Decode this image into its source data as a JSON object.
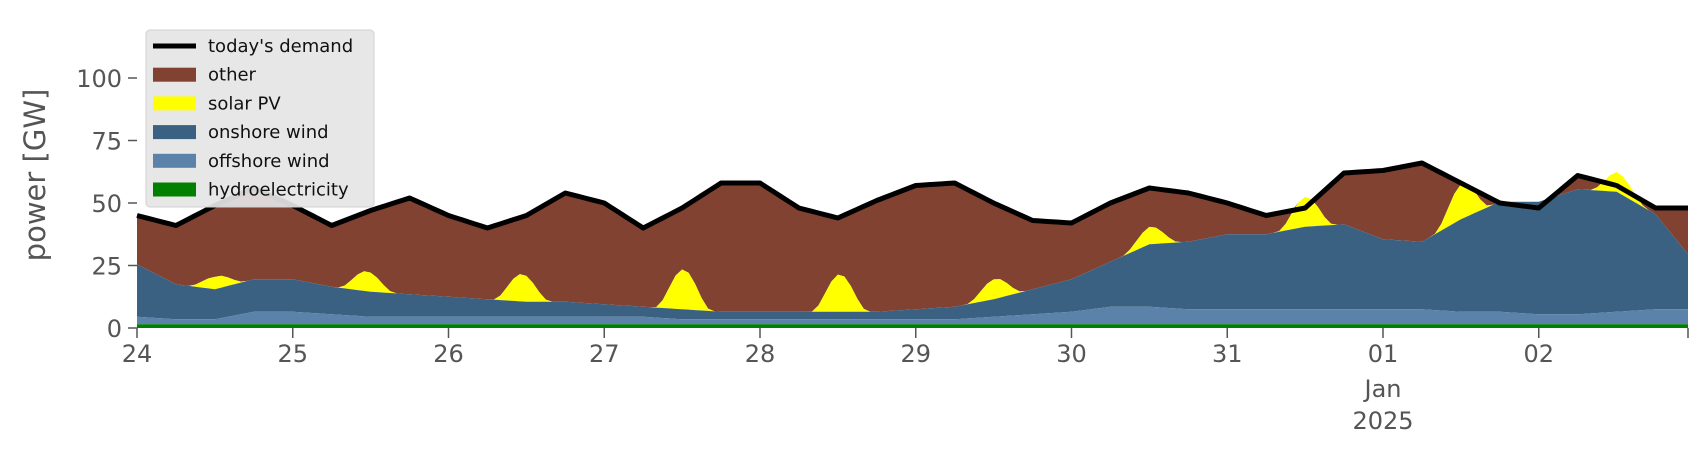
{
  "chart_data": {
    "type": "area",
    "ylabel": "power [GW]",
    "ylim": [
      0,
      120
    ],
    "yticks": [
      0,
      25,
      50,
      75,
      100
    ],
    "xlim": [
      0,
      239
    ],
    "xticks": [
      {
        "x": 0,
        "label": "24"
      },
      {
        "x": 24,
        "label": "25"
      },
      {
        "x": 48,
        "label": "26"
      },
      {
        "x": 72,
        "label": "27"
      },
      {
        "x": 96,
        "label": "28"
      },
      {
        "x": 120,
        "label": "29"
      },
      {
        "x": 144,
        "label": "30"
      },
      {
        "x": 168,
        "label": "31"
      },
      {
        "x": 192,
        "label": "01",
        "sub": [
          "Jan",
          "2025"
        ]
      },
      {
        "x": 216,
        "label": "02"
      }
    ],
    "grid": false,
    "legend_position": "top-left",
    "colors": {
      "demand": "#000000",
      "other": "#824232",
      "solar": "#ffff00",
      "onshore": "#3b6182",
      "offshore": "#5b82a8",
      "hydro": "#007f00"
    },
    "series": [
      {
        "key": "demand",
        "name": "today's demand",
        "kind": "line"
      },
      {
        "key": "other",
        "name": "other",
        "kind": "area"
      },
      {
        "key": "solar",
        "name": "solar PV",
        "kind": "area"
      },
      {
        "key": "onshore",
        "name": "onshore wind",
        "kind": "area"
      },
      {
        "key": "offshore",
        "name": "offshore wind",
        "kind": "area"
      },
      {
        "key": "hydro",
        "name": "hydroelectricity",
        "kind": "area"
      }
    ],
    "x_hours": [
      0,
      6,
      12,
      18,
      24,
      30,
      36,
      42,
      48,
      54,
      60,
      66,
      72,
      78,
      84,
      90,
      96,
      102,
      108,
      114,
      120,
      126,
      132,
      138,
      144,
      150,
      156,
      162,
      168,
      174,
      180,
      186,
      192,
      198,
      204,
      210,
      216,
      222,
      228,
      234,
      239
    ],
    "demand": [
      45,
      41,
      49,
      56,
      49,
      41,
      47,
      52,
      45,
      40,
      45,
      54,
      50,
      40,
      48,
      58,
      58,
      48,
      44,
      51,
      57,
      58,
      50,
      43,
      42,
      50,
      56,
      54,
      50,
      45,
      48,
      62,
      63,
      66,
      58,
      50,
      48,
      61,
      57,
      48,
      48
    ],
    "onshore": [
      21,
      14,
      12,
      13,
      13,
      11,
      10,
      9,
      8,
      7,
      6,
      6,
      5,
      4,
      4,
      3,
      3,
      3,
      3,
      3,
      4,
      5,
      7,
      10,
      13,
      18,
      25,
      27,
      30,
      30,
      33,
      34,
      28,
      27,
      37,
      44,
      45,
      50,
      48,
      38,
      22
    ],
    "offshore": [
      3,
      2,
      2,
      5,
      5,
      4,
      3,
      3,
      3,
      3,
      3,
      3,
      3,
      3,
      2,
      2,
      2,
      2,
      2,
      2,
      2,
      2,
      3,
      4,
      5,
      7,
      7,
      6,
      6,
      6,
      6,
      6,
      6,
      6,
      5,
      5,
      4,
      4,
      5,
      6,
      6
    ],
    "hydro": [
      1.5,
      1.5,
      1.5,
      1.5,
      1.5,
      1.5,
      1.5,
      1.5,
      1.5,
      1.5,
      1.5,
      1.5,
      1.5,
      1.5,
      1.5,
      1.5,
      1.5,
      1.5,
      1.5,
      1.5,
      1.5,
      1.5,
      1.5,
      1.5,
      1.5,
      1.5,
      1.5,
      1.5,
      1.5,
      1.5,
      1.5,
      1.5,
      1.5,
      1.5,
      1.5,
      1.5,
      1.5,
      1.5,
      1.5,
      1.5,
      1.5
    ],
    "solar_peaks": [
      {
        "hour": 12.3,
        "peak": 5
      },
      {
        "hour": 35.4,
        "peak": 8
      },
      {
        "hour": 59.3,
        "peak": 11
      },
      {
        "hour": 84.2,
        "peak": 16
      },
      {
        "hour": 108.3,
        "peak": 15
      },
      {
        "hour": 132.2,
        "peak": 8
      },
      {
        "hour": 156.2,
        "peak": 7
      },
      {
        "hour": 180.1,
        "peak": 12
      },
      {
        "hour": 204.2,
        "peak": 14
      },
      {
        "hour": 228.3,
        "peak": 8
      }
    ]
  }
}
